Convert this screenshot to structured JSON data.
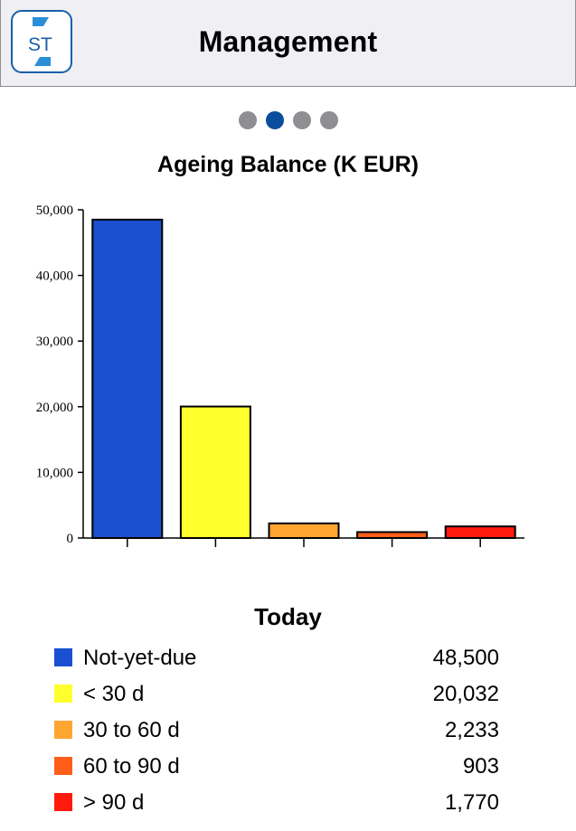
{
  "header": {
    "title": "Management",
    "logo_text": "ST"
  },
  "pager": {
    "pages": 4,
    "active": 1
  },
  "chart_data": {
    "type": "bar",
    "title": "Ageing Balance (K EUR)",
    "xlabel": "",
    "ylabel": "",
    "ylim": [
      0,
      50000
    ],
    "yticks": [
      0,
      10000,
      20000,
      30000,
      40000,
      50000
    ],
    "ytick_labels": [
      "0",
      "10,000",
      "20,000",
      "30,000",
      "40,000",
      "50,000"
    ],
    "categories": [
      "Not-yet-due",
      "< 30 d",
      "30 to 60 d",
      "60 to 90 d",
      "> 90 d"
    ],
    "values": [
      48500,
      20032,
      2233,
      903,
      1770
    ],
    "colors": [
      "#1a4fcf",
      "#ffff2e",
      "#ffa531",
      "#ff5e1a",
      "#ff1a0d"
    ],
    "legend": "bottom",
    "grid": false
  },
  "legend": {
    "title": "Today",
    "items": [
      {
        "label": "Not-yet-due",
        "value": "48,500",
        "color": "#1a4fcf"
      },
      {
        "label": "< 30 d",
        "value": "20,032",
        "color": "#ffff2e"
      },
      {
        "label": "30 to 60 d",
        "value": "2,233",
        "color": "#ffa531"
      },
      {
        "label": "60 to 90 d",
        "value": "903",
        "color": "#ff5e1a"
      },
      {
        "label": "> 90 d",
        "value": "1,770",
        "color": "#ff1a0d"
      }
    ]
  }
}
